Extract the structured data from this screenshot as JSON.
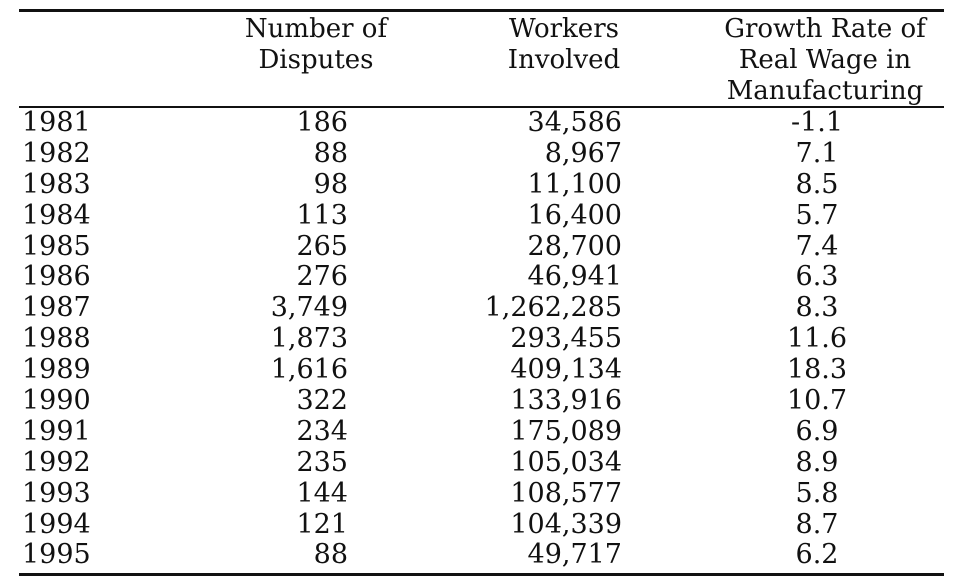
{
  "table": {
    "headers": {
      "disputes": [
        "Number of",
        "Disputes"
      ],
      "workers": [
        "Workers",
        "Involved"
      ],
      "wage": [
        "Growth Rate of",
        "Real Wage in",
        "Manufacturing"
      ]
    },
    "rows": [
      {
        "year": "1981",
        "disputes": "186",
        "workers": "34,586",
        "wage": "-1.1"
      },
      {
        "year": "1982",
        "disputes": "88",
        "workers": "8,967",
        "wage": "7.1"
      },
      {
        "year": "1983",
        "disputes": "98",
        "workers": "11,100",
        "wage": "8.5"
      },
      {
        "year": "1984",
        "disputes": "113",
        "workers": "16,400",
        "wage": "5.7"
      },
      {
        "year": "1985",
        "disputes": "265",
        "workers": "28,700",
        "wage": "7.4"
      },
      {
        "year": "1986",
        "disputes": "276",
        "workers": "46,941",
        "wage": "6.3"
      },
      {
        "year": "1987",
        "disputes": "3,749",
        "workers": "1,262,285",
        "wage": "8.3"
      },
      {
        "year": "1988",
        "disputes": "1,873",
        "workers": "293,455",
        "wage": "11.6"
      },
      {
        "year": "1989",
        "disputes": "1,616",
        "workers": "409,134",
        "wage": "18.3"
      },
      {
        "year": "1990",
        "disputes": "322",
        "workers": "133,916",
        "wage": "10.7"
      },
      {
        "year": "1991",
        "disputes": "234",
        "workers": "175,089",
        "wage": "6.9"
      },
      {
        "year": "1992",
        "disputes": "235",
        "workers": "105,034",
        "wage": "8.9"
      },
      {
        "year": "1993",
        "disputes": "144",
        "workers": "108,577",
        "wage": "5.8"
      },
      {
        "year": "1994",
        "disputes": "121",
        "workers": "104,339",
        "wage": "8.7"
      },
      {
        "year": "1995",
        "disputes": "88",
        "workers": "49,717",
        "wage": "6.2"
      }
    ]
  }
}
